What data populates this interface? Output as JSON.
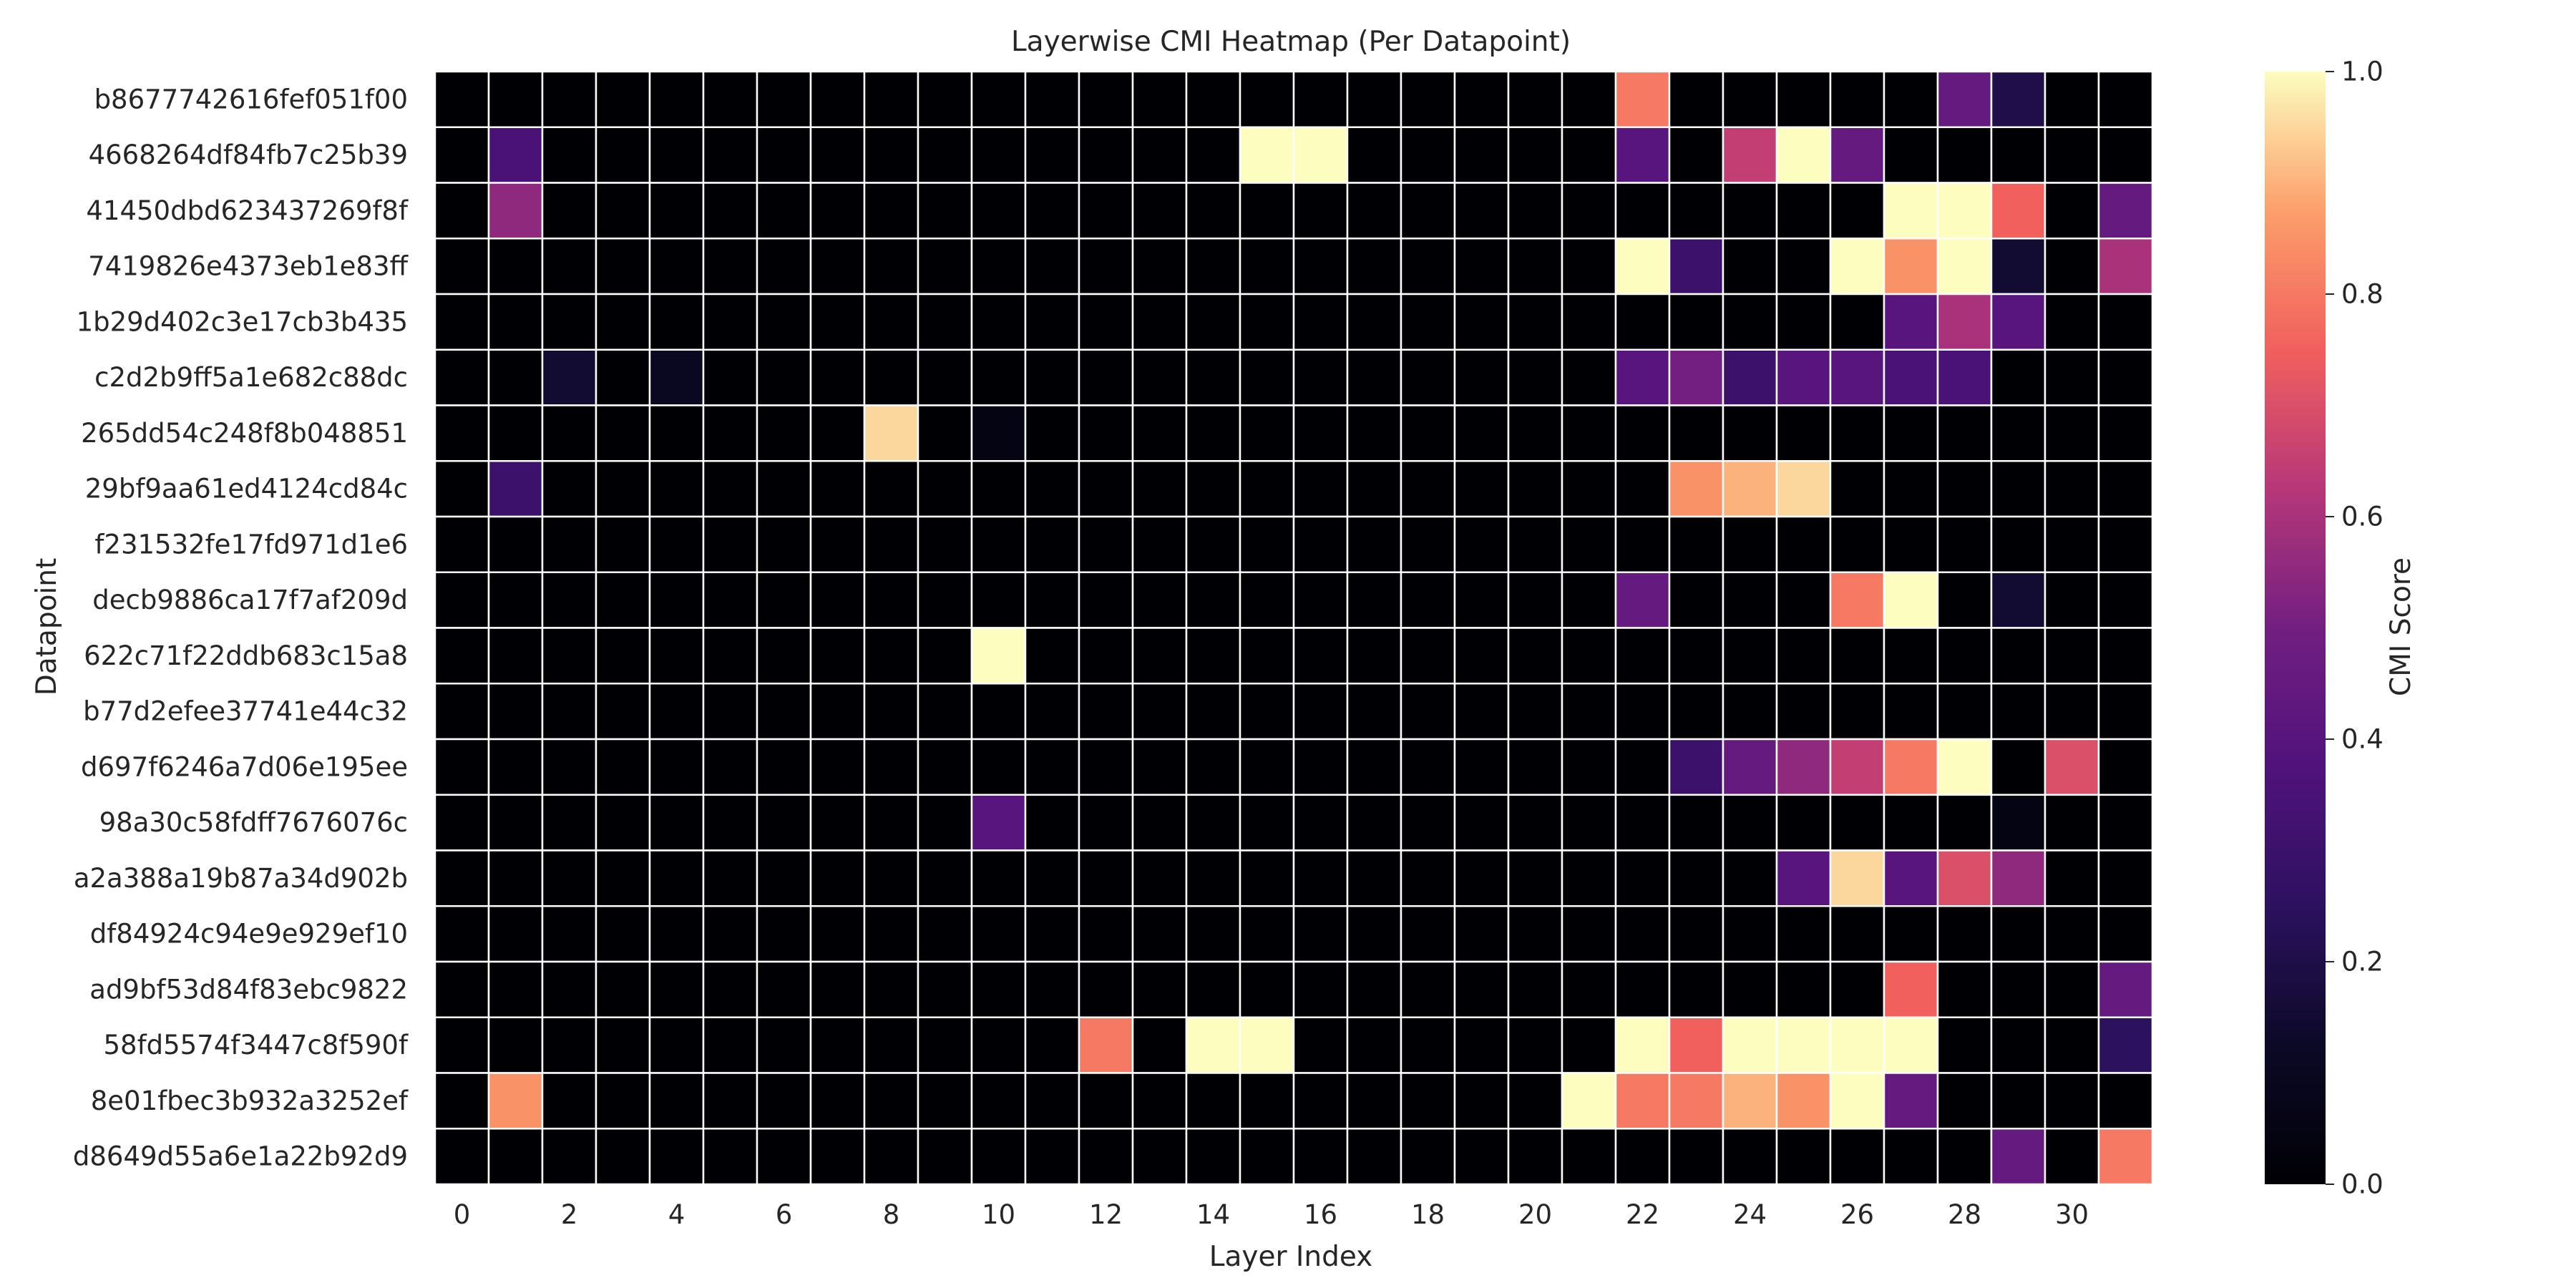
{
  "chart_data": {
    "type": "heatmap",
    "title": "Layerwise CMI Heatmap (Per Datapoint)",
    "xlabel": "Layer Index",
    "ylabel": "Datapoint",
    "colorbar_label": "CMI Score",
    "colormap": "magma",
    "vmin": 0.0,
    "vmax": 1.0,
    "colorbar_ticks": [
      "0.0",
      "0.2",
      "0.4",
      "0.6",
      "0.8",
      "1.0"
    ],
    "x_ticks": [
      "0",
      "2",
      "4",
      "6",
      "8",
      "10",
      "12",
      "14",
      "16",
      "18",
      "20",
      "22",
      "24",
      "26",
      "28",
      "30"
    ],
    "columns": [
      0,
      1,
      2,
      3,
      4,
      5,
      6,
      7,
      8,
      9,
      10,
      11,
      12,
      13,
      14,
      15,
      16,
      17,
      18,
      19,
      20,
      21,
      22,
      23,
      24,
      25,
      26,
      27,
      28,
      29,
      30,
      31
    ],
    "rows": [
      "b8677742616fef051f00",
      "4668264df84fb7c25b39",
      "41450dbd623437269f8f",
      "7419826e4373eb1e83ff",
      "1b29d402c3e17cb3b435",
      "c2d2b9ff5a1e682c88dc",
      "265dd54c248f8b048851",
      "29bf9aa61ed4124cd84c",
      "f231532fe17fd971d1e6",
      "decb9886ca17f7af209d",
      "622c71f22ddb683c15a8",
      "b77d2efee37741e44c32",
      "d697f6246a7d06e195ee",
      "98a30c58fdff7676076c",
      "a2a388a19b87a34d902b",
      "df84924c94e9e929ef10",
      "ad9bf53d84f83ebc9822",
      "58fd5574f3447c8f590f",
      "8e01fbec3b932a3252ef",
      "d8649d55a6e1a22b92d9"
    ],
    "values": [
      [
        0,
        0,
        0,
        0,
        0,
        0,
        0,
        0,
        0,
        0,
        0,
        0,
        0,
        0,
        0,
        0,
        0,
        0,
        0,
        0,
        0,
        0,
        0.8,
        0,
        0,
        0,
        0,
        0,
        0.45,
        0.2,
        0,
        0
      ],
      [
        0,
        0.35,
        0,
        0,
        0,
        0,
        0,
        0,
        0,
        0,
        0,
        0,
        0,
        0,
        0,
        1,
        1,
        0,
        0,
        0,
        0,
        0,
        0.4,
        0,
        0.65,
        1,
        0.45,
        0,
        0,
        0,
        0,
        0
      ],
      [
        0,
        0.55,
        0,
        0,
        0,
        0,
        0,
        0,
        0,
        0,
        0,
        0,
        0,
        0,
        0,
        0,
        0,
        0,
        0,
        0,
        0,
        0,
        0,
        0,
        0,
        0,
        0,
        1,
        1,
        0.75,
        0,
        0.45
      ],
      [
        0,
        0,
        0,
        0,
        0,
        0,
        0,
        0,
        0,
        0,
        0,
        0,
        0,
        0,
        0,
        0,
        0,
        0,
        0,
        0,
        0,
        0,
        1,
        0.3,
        0,
        0,
        1,
        0.85,
        1,
        0.15,
        0,
        0.6
      ],
      [
        0,
        0,
        0,
        0,
        0,
        0,
        0,
        0,
        0,
        0,
        0,
        0,
        0,
        0,
        0,
        0,
        0,
        0,
        0,
        0,
        0,
        0,
        0,
        0,
        0,
        0,
        0,
        0.4,
        0.6,
        0.4,
        0,
        0
      ],
      [
        0,
        0,
        0.15,
        0,
        0.1,
        0,
        0,
        0,
        0,
        0,
        0,
        0,
        0,
        0,
        0,
        0,
        0,
        0,
        0,
        0,
        0,
        0,
        0.4,
        0.5,
        0.3,
        0.4,
        0.4,
        0.35,
        0.35,
        0,
        0,
        0
      ],
      [
        0,
        0,
        0,
        0,
        0,
        0,
        0,
        0,
        0.95,
        0,
        0.05,
        0,
        0,
        0,
        0,
        0,
        0,
        0,
        0,
        0,
        0,
        0,
        0,
        0,
        0,
        0,
        0,
        0,
        0,
        0,
        0,
        0
      ],
      [
        0,
        0.3,
        0,
        0,
        0,
        0,
        0,
        0,
        0,
        0,
        0,
        0,
        0,
        0,
        0,
        0,
        0,
        0,
        0,
        0,
        0,
        0,
        0,
        0.85,
        0.9,
        0.95,
        0,
        0,
        0,
        0,
        0,
        0
      ],
      [
        0,
        0,
        0,
        0,
        0,
        0,
        0,
        0,
        0,
        0,
        0,
        0,
        0,
        0,
        0,
        0,
        0,
        0,
        0,
        0,
        0,
        0,
        0,
        0,
        0,
        0,
        0,
        0,
        0,
        0,
        0,
        0
      ],
      [
        0,
        0,
        0,
        0,
        0,
        0,
        0,
        0,
        0,
        0,
        0,
        0,
        0,
        0,
        0,
        0,
        0,
        0,
        0,
        0,
        0,
        0,
        0.45,
        0,
        0,
        0,
        0.8,
        1,
        0,
        0.15,
        0,
        0
      ],
      [
        0,
        0,
        0,
        0,
        0,
        0,
        0,
        0,
        0,
        0,
        1,
        0,
        0,
        0,
        0,
        0,
        0,
        0,
        0,
        0,
        0,
        0,
        0,
        0,
        0,
        0,
        0,
        0,
        0,
        0,
        0,
        0
      ],
      [
        0,
        0,
        0,
        0,
        0,
        0,
        0,
        0,
        0,
        0,
        0,
        0,
        0,
        0,
        0,
        0,
        0,
        0,
        0,
        0,
        0,
        0,
        0,
        0,
        0,
        0,
        0,
        0,
        0,
        0,
        0,
        0
      ],
      [
        0,
        0,
        0,
        0,
        0,
        0,
        0,
        0,
        0,
        0,
        0,
        0,
        0,
        0,
        0,
        0,
        0,
        0,
        0,
        0,
        0,
        0,
        0,
        0.3,
        0.45,
        0.55,
        0.65,
        0.8,
        1,
        0,
        0.7,
        0
      ],
      [
        0,
        0,
        0,
        0,
        0,
        0,
        0,
        0,
        0,
        0,
        0.4,
        0,
        0,
        0,
        0,
        0,
        0,
        0,
        0,
        0,
        0,
        0,
        0,
        0,
        0,
        0,
        0,
        0,
        0,
        0.05,
        0,
        0
      ],
      [
        0,
        0,
        0,
        0,
        0,
        0,
        0,
        0,
        0,
        0,
        0,
        0,
        0,
        0,
        0,
        0,
        0,
        0,
        0,
        0,
        0,
        0,
        0,
        0,
        0,
        0.4,
        0.95,
        0.4,
        0.7,
        0.55,
        0,
        0
      ],
      [
        0,
        0,
        0,
        0,
        0,
        0,
        0,
        0,
        0,
        0,
        0,
        0,
        0,
        0,
        0,
        0,
        0,
        0,
        0,
        0,
        0,
        0,
        0,
        0,
        0,
        0,
        0,
        0,
        0,
        0,
        0,
        0
      ],
      [
        0,
        0,
        0,
        0,
        0,
        0,
        0,
        0,
        0,
        0,
        0,
        0,
        0,
        0,
        0,
        0,
        0,
        0,
        0,
        0,
        0,
        0,
        0,
        0,
        0,
        0,
        0,
        0.75,
        0,
        0,
        0,
        0.45
      ],
      [
        0,
        0,
        0,
        0,
        0,
        0,
        0,
        0,
        0,
        0,
        0,
        0,
        0.8,
        0,
        1,
        1,
        0,
        0,
        0,
        0,
        0,
        0,
        1,
        0.75,
        1,
        1,
        1,
        1,
        0,
        0,
        0,
        0.25
      ],
      [
        0,
        0.85,
        0,
        0,
        0,
        0,
        0,
        0,
        0,
        0,
        0,
        0,
        0,
        0,
        0,
        0,
        0,
        0,
        0,
        0,
        0,
        1,
        0.8,
        0.8,
        0.9,
        0.85,
        1,
        0.45,
        0,
        0,
        0,
        0
      ],
      [
        0,
        0,
        0,
        0,
        0,
        0,
        0,
        0,
        0,
        0,
        0,
        0,
        0,
        0,
        0,
        0,
        0,
        0,
        0,
        0,
        0,
        0,
        0,
        0,
        0,
        0,
        0,
        0,
        0,
        0.45,
        0,
        0.8
      ]
    ]
  }
}
